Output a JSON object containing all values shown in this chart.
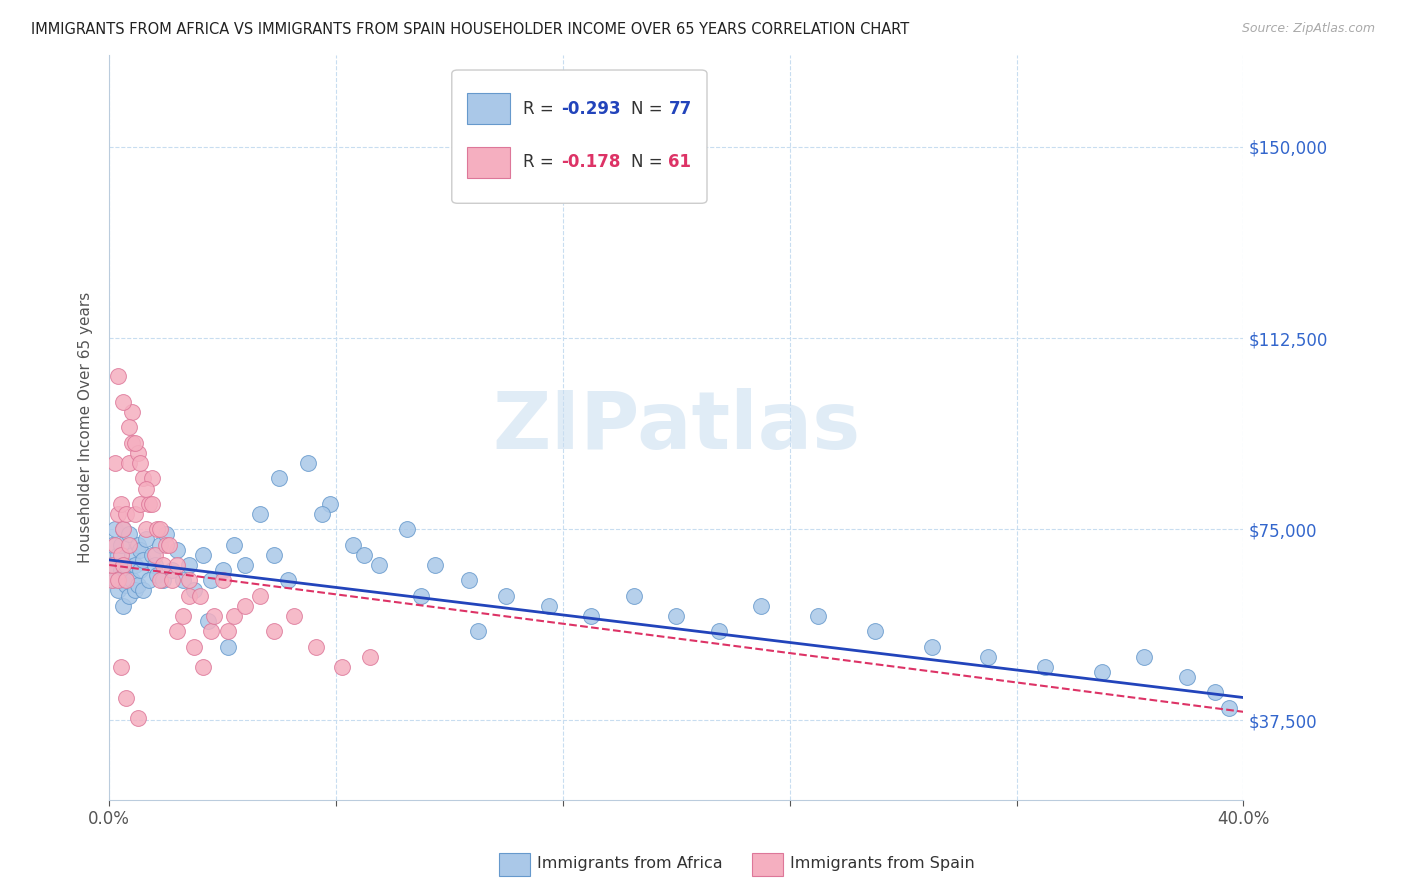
{
  "title": "IMMIGRANTS FROM AFRICA VS IMMIGRANTS FROM SPAIN HOUSEHOLDER INCOME OVER 65 YEARS CORRELATION CHART",
  "source": "Source: ZipAtlas.com",
  "ylabel": "Householder Income Over 65 years",
  "xlim": [
    0.0,
    0.4
  ],
  "ylim": [
    22000,
    168000
  ],
  "ytick_positions": [
    37500,
    75000,
    112500,
    150000
  ],
  "ytick_labels": [
    "$37,500",
    "$75,000",
    "$112,500",
    "$150,000"
  ],
  "xtick_positions": [
    0.0,
    0.08,
    0.16,
    0.24,
    0.32,
    0.4
  ],
  "xtick_labels": [
    "0.0%",
    "",
    "",
    "",
    "",
    "40.0%"
  ],
  "africa_color": "#aac8e8",
  "africa_edge": "#6699cc",
  "spain_color": "#f5afc0",
  "spain_edge": "#dd7799",
  "trend_africa_color": "#2244bb",
  "trend_spain_color": "#dd3366",
  "legend_R_africa": "-0.293",
  "legend_N_africa": "77",
  "legend_R_spain": "-0.178",
  "legend_N_spain": "61",
  "watermark": "ZIPatlas",
  "africa_x": [
    0.001,
    0.001,
    0.002,
    0.002,
    0.003,
    0.003,
    0.004,
    0.004,
    0.005,
    0.005,
    0.005,
    0.006,
    0.006,
    0.007,
    0.007,
    0.008,
    0.008,
    0.009,
    0.009,
    0.01,
    0.01,
    0.011,
    0.011,
    0.012,
    0.012,
    0.013,
    0.014,
    0.015,
    0.016,
    0.017,
    0.018,
    0.019,
    0.02,
    0.022,
    0.024,
    0.026,
    0.028,
    0.03,
    0.033,
    0.036,
    0.04,
    0.044,
    0.048,
    0.053,
    0.058,
    0.063,
    0.07,
    0.078,
    0.086,
    0.095,
    0.105,
    0.115,
    0.127,
    0.14,
    0.155,
    0.17,
    0.185,
    0.2,
    0.215,
    0.23,
    0.25,
    0.27,
    0.29,
    0.31,
    0.33,
    0.35,
    0.365,
    0.38,
    0.39,
    0.395,
    0.06,
    0.075,
    0.09,
    0.035,
    0.042,
    0.11,
    0.13
  ],
  "africa_y": [
    68000,
    72000,
    65000,
    75000,
    63000,
    70000,
    67000,
    72000,
    65000,
    60000,
    75000,
    68000,
    64000,
    74000,
    62000,
    70000,
    65000,
    68000,
    63000,
    72000,
    64000,
    67000,
    71000,
    63000,
    69000,
    73000,
    65000,
    70000,
    68000,
    66000,
    72000,
    65000,
    74000,
    67000,
    71000,
    65000,
    68000,
    63000,
    70000,
    65000,
    67000,
    72000,
    68000,
    78000,
    70000,
    65000,
    88000,
    80000,
    72000,
    68000,
    75000,
    68000,
    65000,
    62000,
    60000,
    58000,
    62000,
    58000,
    55000,
    60000,
    58000,
    55000,
    52000,
    50000,
    48000,
    47000,
    50000,
    46000,
    43000,
    40000,
    85000,
    78000,
    70000,
    57000,
    52000,
    62000,
    55000
  ],
  "spain_x": [
    0.001,
    0.001,
    0.002,
    0.002,
    0.003,
    0.003,
    0.004,
    0.004,
    0.005,
    0.005,
    0.006,
    0.006,
    0.007,
    0.007,
    0.008,
    0.008,
    0.009,
    0.01,
    0.011,
    0.012,
    0.013,
    0.014,
    0.015,
    0.016,
    0.017,
    0.018,
    0.019,
    0.02,
    0.022,
    0.024,
    0.026,
    0.028,
    0.03,
    0.033,
    0.036,
    0.04,
    0.044,
    0.048,
    0.053,
    0.058,
    0.065,
    0.073,
    0.082,
    0.092,
    0.003,
    0.005,
    0.007,
    0.009,
    0.011,
    0.013,
    0.015,
    0.018,
    0.021,
    0.024,
    0.028,
    0.032,
    0.037,
    0.042,
    0.01,
    0.006,
    0.004
  ],
  "spain_y": [
    65000,
    68000,
    88000,
    72000,
    78000,
    65000,
    80000,
    70000,
    75000,
    68000,
    78000,
    65000,
    88000,
    72000,
    92000,
    98000,
    78000,
    90000,
    80000,
    85000,
    75000,
    80000,
    85000,
    70000,
    75000,
    65000,
    68000,
    72000,
    65000,
    55000,
    58000,
    62000,
    52000,
    48000,
    55000,
    65000,
    58000,
    60000,
    62000,
    55000,
    58000,
    52000,
    48000,
    50000,
    105000,
    100000,
    95000,
    92000,
    88000,
    83000,
    80000,
    75000,
    72000,
    68000,
    65000,
    62000,
    58000,
    55000,
    38000,
    42000,
    48000
  ]
}
